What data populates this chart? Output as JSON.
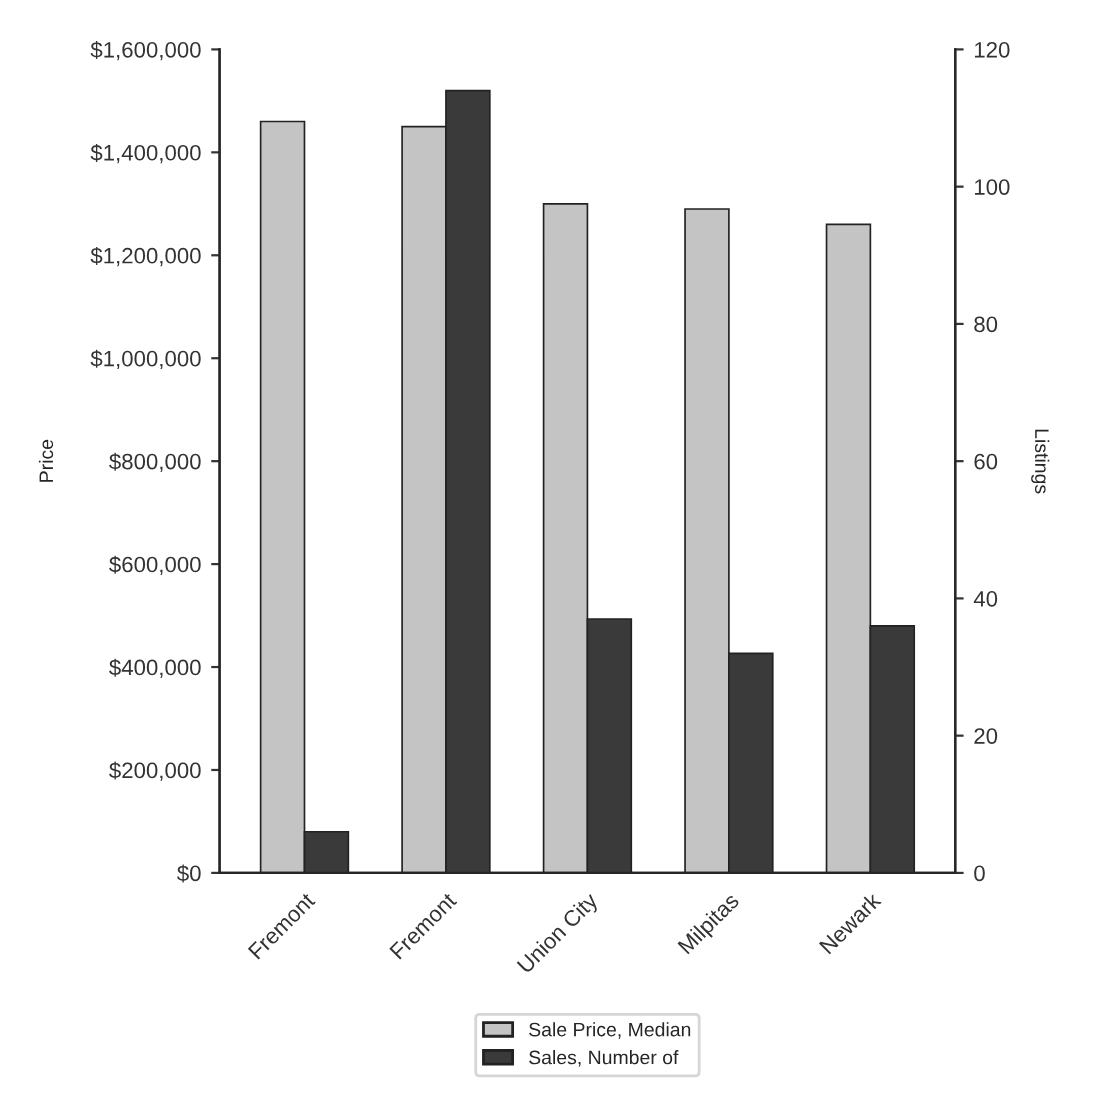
{
  "chart_data": {
    "type": "bar",
    "ylabel": "Price",
    "y2label": "Listings",
    "categories": [
      "Fremont",
      "Fremont",
      "Union City",
      "Milpitas",
      "Newark"
    ],
    "series": [
      {
        "name": "Sale Price, Median",
        "color": "#c4c4c4",
        "values": [
          1460000,
          1450000,
          1300000,
          1290000,
          1260000
        ]
      },
      {
        "name": "Sales, Number of",
        "color": "#3a3a3a",
        "axis": "y2",
        "values": [
          6,
          114,
          37,
          32,
          36
        ]
      }
    ],
    "ylim": [
      0,
      1600000
    ],
    "yticks": [
      {
        "value": 0,
        "label": "$0"
      },
      {
        "value": 200000,
        "label": "$200,000"
      },
      {
        "value": 400000,
        "label": "$400,000"
      },
      {
        "value": 600000,
        "label": "$600,000"
      },
      {
        "value": 800000,
        "label": "$800,000"
      },
      {
        "value": 1000000,
        "label": "$1,000,000"
      },
      {
        "value": 1200000,
        "label": "$1,200,000"
      },
      {
        "value": 1400000,
        "label": "$1,400,000"
      },
      {
        "value": 1600000,
        "label": "$1,600,000"
      }
    ],
    "y2lim": [
      0,
      120
    ],
    "y2ticks": [
      0,
      20,
      40,
      60,
      80,
      100,
      120
    ],
    "grid": false,
    "legend": "bottom"
  }
}
